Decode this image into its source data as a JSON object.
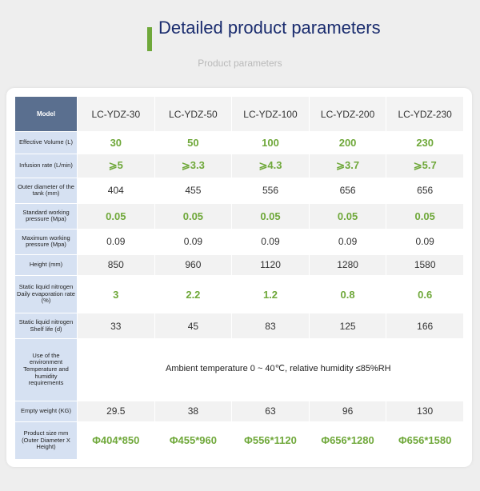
{
  "header": {
    "title": "Detailed product parameters",
    "subtitle": "Product parameters"
  },
  "table": {
    "label_header": "Model",
    "models": [
      "LC-YDZ-30",
      "LC-YDZ-50",
      "LC-YDZ-100",
      "LC-YDZ-200",
      "LC-YDZ-230"
    ],
    "rows": [
      {
        "label": "Effective Volume (L)",
        "values": [
          "30",
          "50",
          "100",
          "200",
          "230"
        ]
      },
      {
        "label": "Infusion rate (L/min)",
        "values": [
          "⩾5",
          "⩾3.3",
          "⩾4.3",
          "⩾3.7",
          "⩾5.7"
        ]
      },
      {
        "label": "Outer diameter of the tank (mm)",
        "values": [
          "404",
          "455",
          "556",
          "656",
          "656"
        ]
      },
      {
        "label": "Standard working pressure (Mpa)",
        "values": [
          "0.05",
          "0.05",
          "0.05",
          "0.05",
          "0.05"
        ]
      },
      {
        "label": "Maximum working pressure (Mpa)",
        "values": [
          "0.09",
          "0.09",
          "0.09",
          "0.09",
          "0.09"
        ]
      },
      {
        "label": "Height (mm)",
        "values": [
          "850",
          "960",
          "1120",
          "1280",
          "1580"
        ]
      },
      {
        "label": "Static liquid nitrogen Daily evaporation rate (%)",
        "values": [
          "3",
          "2.2",
          "1.2",
          "0.8",
          "0.6"
        ]
      },
      {
        "label": "Static liquid nitrogen Shelf life (d)",
        "values": [
          "33",
          "45",
          "83",
          "125",
          "166"
        ]
      },
      {
        "label": "Use of the environment Temperature and humidity requirements",
        "merged": "Ambient temperature 0 ~ 40℃, relative humidity ≤85%RH"
      },
      {
        "label": "Empty weight (KG)",
        "values": [
          "29.5",
          "38",
          "63",
          "96",
          "130"
        ]
      },
      {
        "label": "Product size mm (Outer Diameter X Height)",
        "values": [
          "Φ404*850",
          "Φ455*960",
          "Φ556*1120",
          "Φ656*1280",
          "Φ656*1580"
        ]
      }
    ]
  },
  "colors": {
    "accent_green": "#6fa83a",
    "title_navy": "#1a2c6e",
    "label_blue": "#d6e1f2",
    "header_slate": "#5a6f8f"
  }
}
